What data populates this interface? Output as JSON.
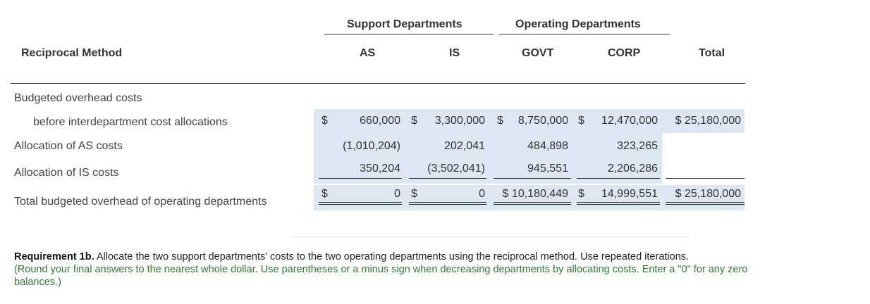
{
  "table": {
    "group_headers": {
      "support": "Support Departments",
      "operating": "Operating Departments"
    },
    "method_title": "Reciprocal Method",
    "columns": {
      "as": "AS",
      "is": "IS",
      "govt": "GOVT",
      "corp": "CORP",
      "total": "Total"
    },
    "rows": {
      "budgeted_label_1": "Budgeted overhead costs",
      "budgeted_label_2": "before interdepartment cost allocations",
      "budgeted": {
        "as_sign": "$",
        "as": "660,000",
        "is_sign": "$",
        "is": "3,300,000",
        "govt_sign": "$",
        "govt": "8,750,000",
        "corp_sign": "$",
        "corp": "12,470,000",
        "total": "$ 25,180,000"
      },
      "alloc_as_label": "Allocation of AS costs",
      "alloc_as": {
        "as": "(1,010,204)",
        "is": "202,041",
        "govt": "484,898",
        "corp": "323,265",
        "total": ""
      },
      "alloc_is_label": "Allocation of IS costs",
      "alloc_is": {
        "as": "350,204",
        "is": "(3,502,041)",
        "govt": "945,551",
        "corp": "2,206,286",
        "total": ""
      },
      "total_label": "Total budgeted overhead of operating departments",
      "total_row": {
        "as_sign": "$",
        "as": "0",
        "is_sign": "$",
        "is": "0",
        "govt": "$ 10,180,449",
        "corp_sign": "$",
        "corp": "14,999,551",
        "total": "$ 25,180,000"
      }
    }
  },
  "requirement": {
    "bold": "Requirement 1b.",
    "text": " Allocate the two support departments' costs to the two operating departments using the reciprocal method. Use repeated iterations.",
    "note": "(Round your final answers to the nearest whole dollar. Use parentheses or a minus sign when decreasing departments by allocating costs. Enter a \"0\" for any zero balances.)"
  }
}
